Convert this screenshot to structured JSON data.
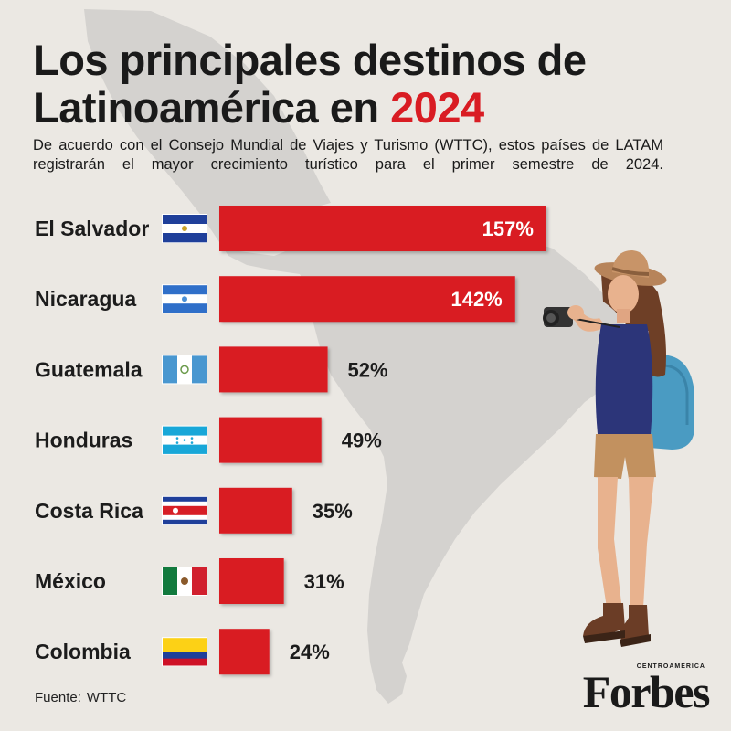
{
  "title": {
    "line1": "Los principales destinos de",
    "line2_prefix": "Latinoamérica en ",
    "line2_year": "2024"
  },
  "subtitle": "De acuerdo con el Consejo Mundial de Viajes y Turismo (WTTC), estos países de LATAM registrarán el mayor crecimiento turístico para el primer semestre de 2024.",
  "source": {
    "label": "Fuente:",
    "value": "WTTC"
  },
  "logo": {
    "name": "Forbes",
    "edition": "CENTROAMÉRICA"
  },
  "colors": {
    "accent": "#d91c23",
    "background": "#ebe8e3",
    "map": "#d4d2cf"
  },
  "chart_data": {
    "type": "bar",
    "orientation": "horizontal",
    "categories": [
      "El Salvador",
      "Nicaragua",
      "Guatemala",
      "Honduras",
      "Costa Rica",
      "México",
      "Colombia"
    ],
    "values": [
      157,
      142,
      52,
      49,
      35,
      31,
      24
    ],
    "value_labels": [
      "157%",
      "142%",
      "52%",
      "49%",
      "35%",
      "31%",
      "24%"
    ],
    "flags": [
      "el-salvador-flag",
      "nicaragua-flag",
      "guatemala-flag",
      "honduras-flag",
      "costa-rica-flag",
      "mexico-flag",
      "colombia-flag"
    ],
    "unit": "%",
    "bar_color": "#d91c23",
    "grid": false,
    "legend": "none"
  }
}
